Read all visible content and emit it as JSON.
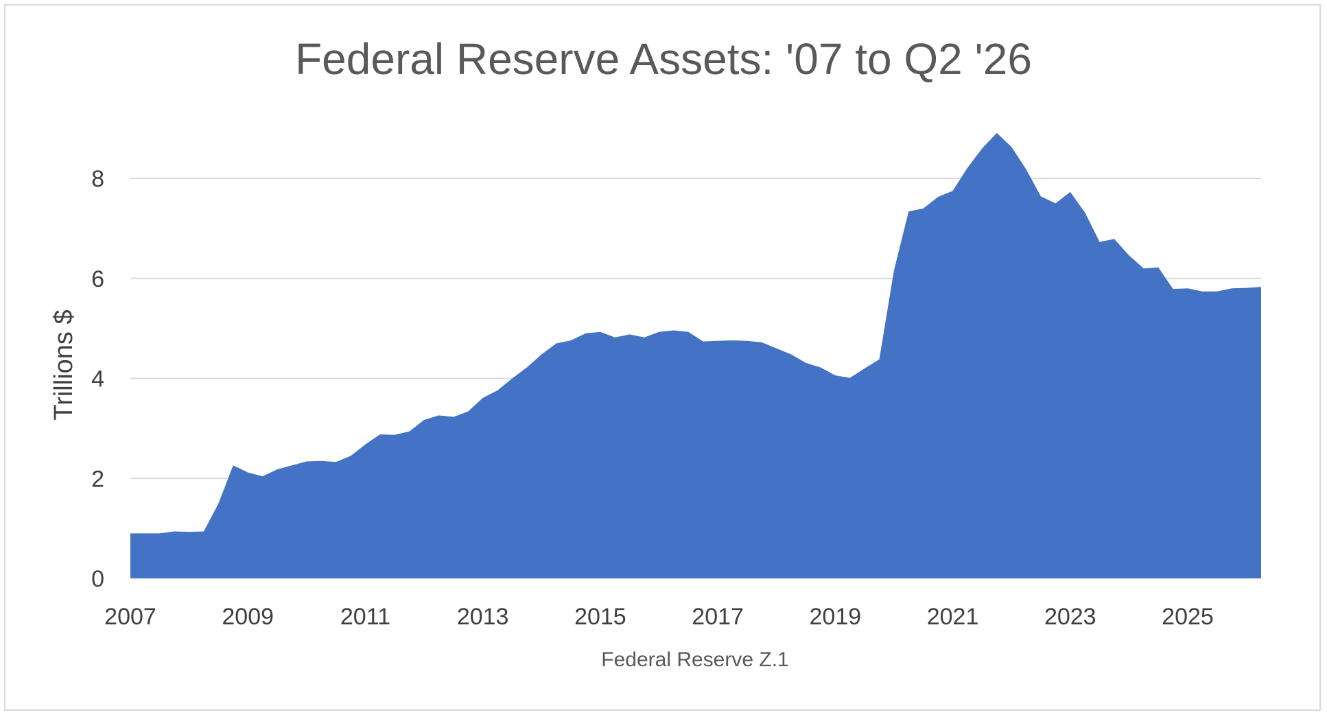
{
  "chart_data": {
    "type": "area",
    "title": "Federal Reserve Assets: '07 to Q2 '26",
    "xlabel": "Federal Reserve Z.1",
    "ylabel": "Trillions $",
    "ylim": [
      0,
      9.4
    ],
    "xlim": [
      2007,
      2026.25
    ],
    "yticks": [
      0,
      2,
      4,
      6,
      8
    ],
    "xticks": [
      2007,
      2009,
      2011,
      2013,
      2015,
      2017,
      2019,
      2021,
      2023,
      2025
    ],
    "grid": true,
    "legend": "none",
    "color": "#4472c4",
    "x": [
      2007.0,
      2007.25,
      2007.5,
      2007.75,
      2008.0,
      2008.25,
      2008.5,
      2008.75,
      2009.0,
      2009.25,
      2009.5,
      2009.75,
      2010.0,
      2010.25,
      2010.5,
      2010.75,
      2011.0,
      2011.25,
      2011.5,
      2011.75,
      2012.0,
      2012.25,
      2012.5,
      2012.75,
      2013.0,
      2013.25,
      2013.5,
      2013.75,
      2014.0,
      2014.25,
      2014.5,
      2014.75,
      2015.0,
      2015.25,
      2015.5,
      2015.75,
      2016.0,
      2016.25,
      2016.5,
      2016.75,
      2017.0,
      2017.25,
      2017.5,
      2017.75,
      2018.0,
      2018.25,
      2018.5,
      2018.75,
      2019.0,
      2019.25,
      2019.5,
      2019.75,
      2020.0,
      2020.25,
      2020.5,
      2020.75,
      2021.0,
      2021.25,
      2021.5,
      2021.75,
      2022.0,
      2022.25,
      2022.5,
      2022.75,
      2023.0,
      2023.25,
      2023.5,
      2023.75,
      2024.0,
      2024.25,
      2024.5,
      2024.75,
      2025.0,
      2025.25,
      2025.5,
      2025.75,
      2026.0,
      2026.25
    ],
    "values": [
      0.9,
      0.9,
      0.9,
      0.94,
      0.93,
      0.94,
      1.5,
      2.26,
      2.12,
      2.04,
      2.18,
      2.26,
      2.34,
      2.35,
      2.33,
      2.45,
      2.68,
      2.88,
      2.87,
      2.94,
      3.17,
      3.26,
      3.23,
      3.34,
      3.61,
      3.76,
      4.0,
      4.22,
      4.48,
      4.7,
      4.76,
      4.9,
      4.93,
      4.82,
      4.88,
      4.82,
      4.93,
      4.96,
      4.93,
      4.74,
      4.75,
      4.76,
      4.75,
      4.72,
      4.6,
      4.48,
      4.31,
      4.22,
      4.06,
      4.01,
      4.2,
      4.38,
      6.16,
      7.34,
      7.4,
      7.63,
      7.75,
      8.21,
      8.6,
      8.91,
      8.63,
      8.18,
      7.64,
      7.5,
      7.73,
      7.32,
      6.73,
      6.79,
      6.46,
      6.2,
      6.22,
      5.79,
      5.8,
      5.74,
      5.74,
      5.8,
      5.81,
      5.83
    ]
  }
}
